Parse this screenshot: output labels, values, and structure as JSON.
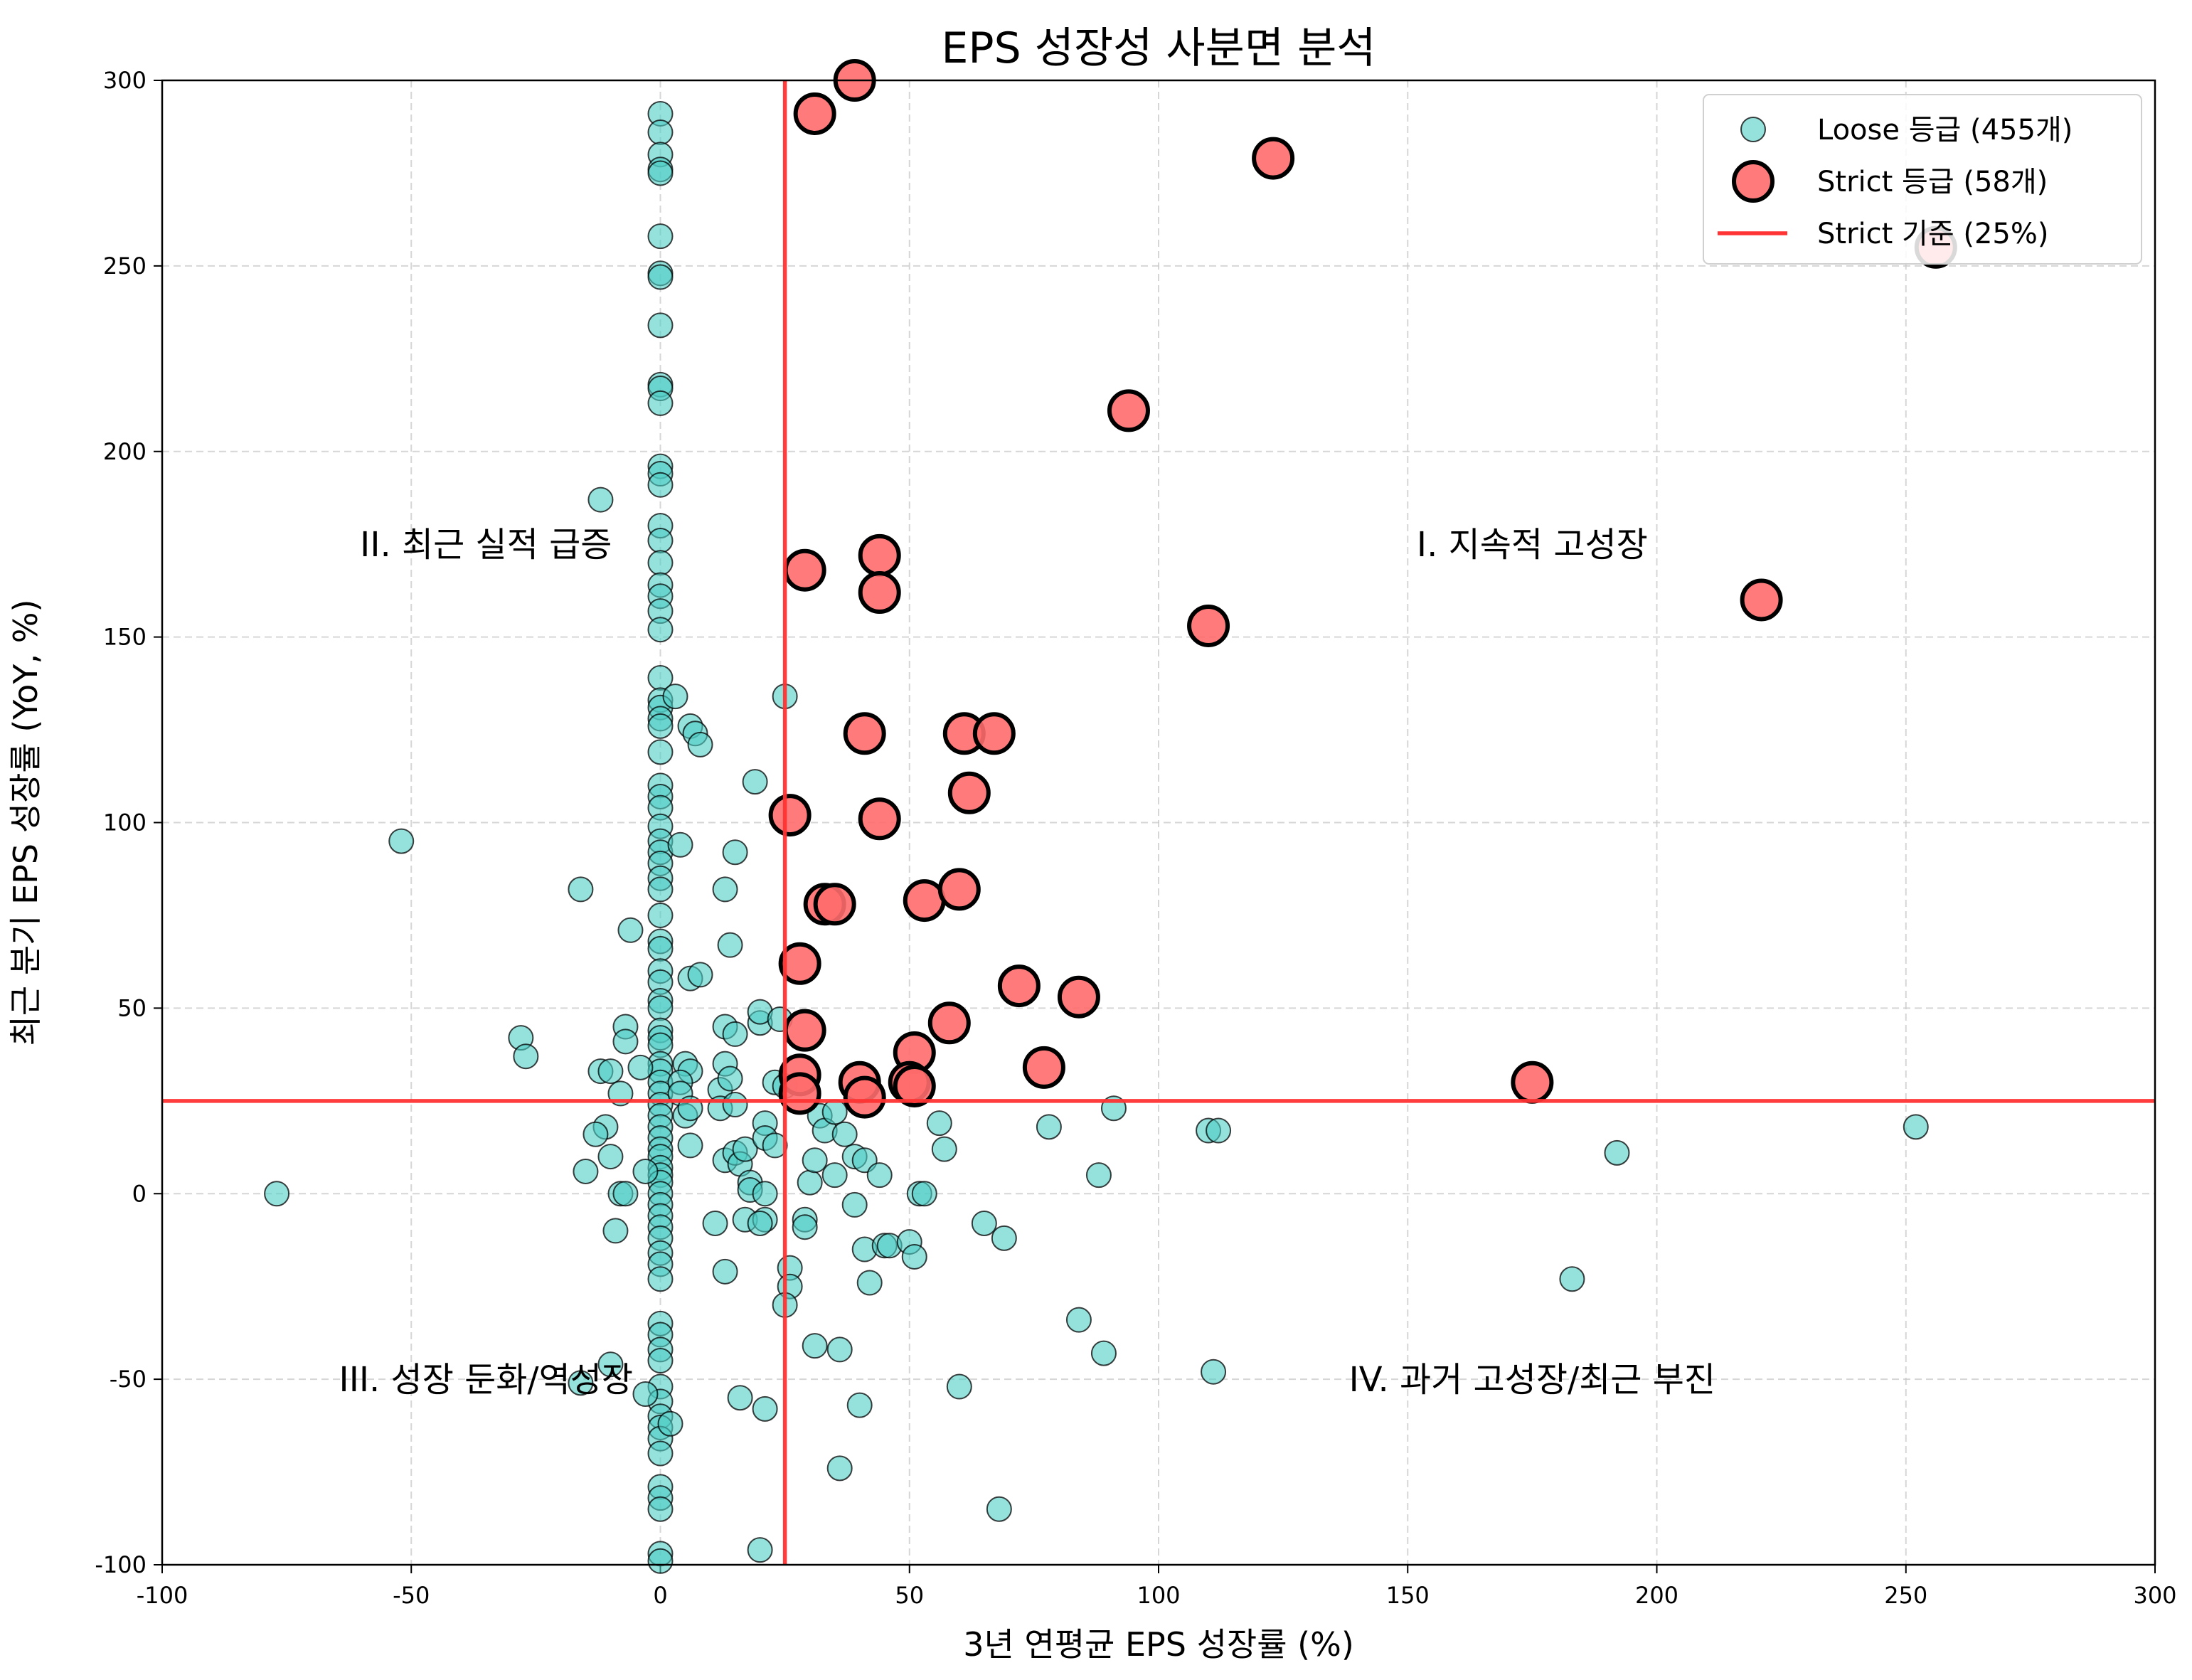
{
  "chart_data": {
    "type": "scatter",
    "title": "EPS 성장성 사분면 분석",
    "xlabel": "3년 연평균 EPS 성장률 (%)",
    "ylabel": "최근 분기 EPS 성장률 (YoY, %)",
    "xlim": [
      -100,
      300
    ],
    "ylim": [
      -100,
      300
    ],
    "xticks": [
      -100,
      -50,
      0,
      50,
      100,
      150,
      200,
      250,
      300
    ],
    "yticks": [
      -100,
      -50,
      0,
      50,
      100,
      150,
      200,
      250,
      300
    ],
    "grid": true,
    "legend_position": "top-right",
    "threshold": {
      "x": 25,
      "y": 25,
      "label": "Strict 기준 (25%)",
      "color": "#ff3333"
    },
    "quadrant_labels": [
      {
        "text": "I. 지속적 고성장",
        "x": 175,
        "y": 175
      },
      {
        "text": "II. 최근 실적 급증",
        "x": -35,
        "y": 175
      },
      {
        "text": "III. 성장 둔화/역성장",
        "x": -35,
        "y": -50
      },
      {
        "text": "IV. 과거 고성장/최근 부진",
        "x": 175,
        "y": -50
      }
    ],
    "series": [
      {
        "name": "Loose 등급 (455개)",
        "color": "#4ecdc4",
        "points": [
          [
            0,
            291
          ],
          [
            0,
            286
          ],
          [
            0,
            280
          ],
          [
            0,
            276
          ],
          [
            0,
            275
          ],
          [
            0,
            258
          ],
          [
            0,
            248
          ],
          [
            0,
            247
          ],
          [
            0,
            234
          ],
          [
            0,
            218
          ],
          [
            0,
            217
          ],
          [
            0,
            213
          ],
          [
            0,
            196
          ],
          [
            0,
            194
          ],
          [
            0,
            191
          ],
          [
            0,
            180
          ],
          [
            0,
            176
          ],
          [
            0,
            170
          ],
          [
            0,
            164
          ],
          [
            0,
            161
          ],
          [
            0,
            157
          ],
          [
            0,
            152
          ],
          [
            0,
            139
          ],
          [
            0,
            133
          ],
          [
            0,
            131
          ],
          [
            0,
            128
          ],
          [
            0,
            126
          ],
          [
            0,
            119
          ],
          [
            0,
            110
          ],
          [
            0,
            107
          ],
          [
            0,
            104
          ],
          [
            0,
            99
          ],
          [
            0,
            95
          ],
          [
            0,
            92
          ],
          [
            0,
            89
          ],
          [
            0,
            85
          ],
          [
            0,
            82
          ],
          [
            0,
            75
          ],
          [
            0,
            68
          ],
          [
            0,
            66
          ],
          [
            0,
            60
          ],
          [
            0,
            57
          ],
          [
            0,
            52
          ],
          [
            0,
            50
          ],
          [
            0,
            44
          ],
          [
            0,
            42
          ],
          [
            0,
            40
          ],
          [
            0,
            35
          ],
          [
            0,
            33
          ],
          [
            0,
            30
          ],
          [
            0,
            27
          ],
          [
            0,
            24
          ],
          [
            0,
            21
          ],
          [
            0,
            18
          ],
          [
            0,
            15
          ],
          [
            0,
            12
          ],
          [
            0,
            10
          ],
          [
            0,
            7
          ],
          [
            0,
            5
          ],
          [
            0,
            3
          ],
          [
            0,
            0
          ],
          [
            0,
            -3
          ],
          [
            0,
            -6
          ],
          [
            0,
            -9
          ],
          [
            0,
            -12
          ],
          [
            0,
            -16
          ],
          [
            0,
            -19
          ],
          [
            0,
            -23
          ],
          [
            0,
            -35
          ],
          [
            0,
            -38
          ],
          [
            0,
            -42
          ],
          [
            0,
            -45
          ],
          [
            0,
            -52
          ],
          [
            0,
            -56
          ],
          [
            0,
            -60
          ],
          [
            0,
            -63
          ],
          [
            0,
            -66
          ],
          [
            0,
            -70
          ],
          [
            0,
            -79
          ],
          [
            0,
            -82
          ],
          [
            0,
            -85
          ],
          [
            0,
            -97
          ],
          [
            0,
            -99
          ],
          [
            -77,
            0
          ],
          [
            -52,
            95
          ],
          [
            -16,
            82
          ],
          [
            -12,
            187
          ],
          [
            -28,
            42
          ],
          [
            -27,
            37
          ],
          [
            -12,
            33
          ],
          [
            -10,
            33
          ],
          [
            -8,
            27
          ],
          [
            -7,
            45
          ],
          [
            -7,
            41
          ],
          [
            -6,
            71
          ],
          [
            -4,
            34
          ],
          [
            -3,
            6
          ],
          [
            -11,
            18
          ],
          [
            -13,
            16
          ],
          [
            -15,
            6
          ],
          [
            -10,
            10
          ],
          [
            -8,
            0
          ],
          [
            -7,
            0
          ],
          [
            -9,
            -10
          ],
          [
            -10,
            -46
          ],
          [
            -16,
            -51
          ],
          [
            3,
            134
          ],
          [
            4,
            94
          ],
          [
            6,
            126
          ],
          [
            7,
            124
          ],
          [
            8,
            121
          ],
          [
            6,
            58
          ],
          [
            8,
            59
          ],
          [
            5,
            35
          ],
          [
            6,
            33
          ],
          [
            4,
            30
          ],
          [
            4,
            27
          ],
          [
            5,
            21
          ],
          [
            6,
            23
          ],
          [
            6,
            13
          ],
          [
            2,
            -62
          ],
          [
            -3,
            -54
          ],
          [
            11,
            -8
          ],
          [
            12,
            28
          ],
          [
            12,
            23
          ],
          [
            13,
            82
          ],
          [
            13,
            45
          ],
          [
            13,
            35
          ],
          [
            13,
            9
          ],
          [
            13,
            -21
          ],
          [
            14,
            67
          ],
          [
            14,
            31
          ],
          [
            15,
            92
          ],
          [
            15,
            43
          ],
          [
            15,
            24
          ],
          [
            15,
            11
          ],
          [
            16,
            8
          ],
          [
            16,
            -55
          ],
          [
            17,
            12
          ],
          [
            17,
            -7
          ],
          [
            18,
            3
          ],
          [
            18,
            1
          ],
          [
            19,
            111
          ],
          [
            20,
            46
          ],
          [
            20,
            49
          ],
          [
            21,
            19
          ],
          [
            21,
            15
          ],
          [
            21,
            0
          ],
          [
            21,
            -7
          ],
          [
            20,
            -8
          ],
          [
            21,
            -58
          ],
          [
            20,
            -96
          ],
          [
            23,
            13
          ],
          [
            23,
            30
          ],
          [
            24,
            47
          ],
          [
            25,
            134
          ],
          [
            25,
            29
          ],
          [
            26,
            -20
          ],
          [
            26,
            -25
          ],
          [
            25,
            -30
          ],
          [
            29,
            -7
          ],
          [
            29,
            -9
          ],
          [
            30,
            3
          ],
          [
            31,
            9
          ],
          [
            31,
            -41
          ],
          [
            32,
            21
          ],
          [
            33,
            17
          ],
          [
            35,
            5
          ],
          [
            35,
            22
          ],
          [
            36,
            -42
          ],
          [
            36,
            -74
          ],
          [
            37,
            16
          ],
          [
            39,
            10
          ],
          [
            39,
            -3
          ],
          [
            40,
            -57
          ],
          [
            41,
            9
          ],
          [
            41,
            -15
          ],
          [
            42,
            -24
          ],
          [
            44,
            5
          ],
          [
            45,
            -14
          ],
          [
            46,
            -14
          ],
          [
            50,
            -13
          ],
          [
            51,
            -17
          ],
          [
            52,
            0
          ],
          [
            53,
            0
          ],
          [
            56,
            19
          ],
          [
            57,
            12
          ],
          [
            60,
            -52
          ],
          [
            65,
            -8
          ],
          [
            68,
            -85
          ],
          [
            69,
            -12
          ],
          [
            78,
            18
          ],
          [
            84,
            -34
          ],
          [
            88,
            5
          ],
          [
            89,
            -43
          ],
          [
            91,
            23
          ],
          [
            110,
            17
          ],
          [
            112,
            17
          ],
          [
            111,
            -48
          ],
          [
            183,
            -23
          ],
          [
            192,
            11
          ],
          [
            252,
            18
          ]
        ]
      },
      {
        "name": "Strict 등급 (58개)",
        "color": "#ff6b6b",
        "points": [
          [
            39,
            300
          ],
          [
            31,
            291
          ],
          [
            123,
            279
          ],
          [
            256,
            255
          ],
          [
            94,
            211
          ],
          [
            44,
            172
          ],
          [
            29,
            168
          ],
          [
            44,
            162
          ],
          [
            221,
            160
          ],
          [
            110,
            153
          ],
          [
            41,
            124
          ],
          [
            61,
            124
          ],
          [
            67,
            124
          ],
          [
            62,
            108
          ],
          [
            26,
            102
          ],
          [
            44,
            101
          ],
          [
            33,
            78
          ],
          [
            35,
            78
          ],
          [
            53,
            79
          ],
          [
            60,
            82
          ],
          [
            28,
            62
          ],
          [
            72,
            56
          ],
          [
            84,
            53
          ],
          [
            58,
            46
          ],
          [
            29,
            44
          ],
          [
            51,
            38
          ],
          [
            28,
            32
          ],
          [
            40,
            30
          ],
          [
            50,
            30
          ],
          [
            51,
            29
          ],
          [
            28,
            27
          ],
          [
            77,
            34
          ],
          [
            41,
            26
          ],
          [
            175,
            30
          ]
        ]
      }
    ],
    "legend": [
      {
        "label": "Loose 등급 (455개)",
        "kind": "marker",
        "color": "#4ecdc4"
      },
      {
        "label": "Strict 등급 (58개)",
        "kind": "marker",
        "color": "#ff6b6b"
      },
      {
        "label": "Strict 기준 (25%)",
        "kind": "line",
        "color": "#ff3333"
      }
    ]
  }
}
